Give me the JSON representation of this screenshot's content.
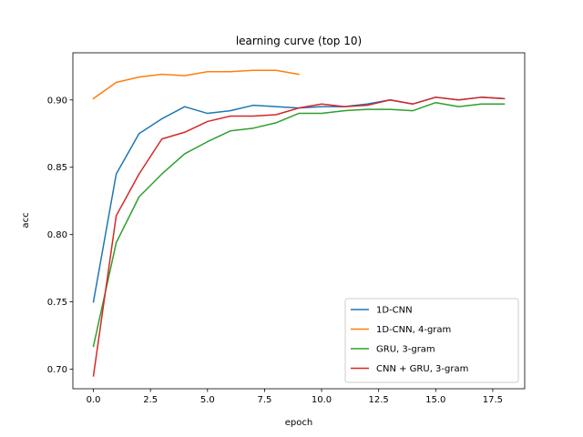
{
  "chart_data": {
    "type": "line",
    "title": "learning curve (top 10)",
    "xlabel": "epoch",
    "ylabel": "acc",
    "xlim": [
      -0.9,
      18.9
    ],
    "ylim": [
      0.6855,
      0.935
    ],
    "xticks": [
      0.0,
      2.5,
      5.0,
      7.5,
      10.0,
      12.5,
      15.0,
      17.5
    ],
    "xtick_labels": [
      "0.0",
      "2.5",
      "5.0",
      "7.5",
      "10.0",
      "12.5",
      "15.0",
      "17.5"
    ],
    "yticks": [
      0.7,
      0.75,
      0.8,
      0.85,
      0.9
    ],
    "ytick_labels": [
      "0.70",
      "0.75",
      "0.80",
      "0.85",
      "0.90"
    ],
    "grid": false,
    "legend_position": "lower-right",
    "series": [
      {
        "name": "1D-CNN",
        "color": "#1f77b4",
        "x": [
          0,
          1,
          2,
          3,
          4,
          5,
          6,
          7,
          8,
          9,
          10,
          11,
          12,
          13,
          14,
          15,
          16,
          17,
          18
        ],
        "y": [
          0.75,
          0.845,
          0.875,
          0.886,
          0.895,
          0.89,
          0.892,
          0.896,
          0.895,
          0.894,
          0.895,
          0.895,
          0.897,
          0.9,
          0.897,
          0.902,
          0.9,
          0.902,
          0.901
        ]
      },
      {
        "name": "1D-CNN, 4-gram",
        "color": "#ff7f0e",
        "x": [
          0,
          1,
          2,
          3,
          4,
          5,
          6,
          7,
          8,
          9
        ],
        "y": [
          0.901,
          0.913,
          0.917,
          0.919,
          0.918,
          0.921,
          0.921,
          0.922,
          0.922,
          0.919
        ]
      },
      {
        "name": "GRU, 3-gram",
        "color": "#2ca02c",
        "x": [
          0,
          1,
          2,
          3,
          4,
          5,
          6,
          7,
          8,
          9,
          10,
          11,
          12,
          13,
          14,
          15,
          16,
          17,
          18
        ],
        "y": [
          0.717,
          0.794,
          0.828,
          0.845,
          0.86,
          0.869,
          0.877,
          0.879,
          0.883,
          0.89,
          0.89,
          0.892,
          0.893,
          0.893,
          0.892,
          0.898,
          0.895,
          0.897,
          0.897
        ]
      },
      {
        "name": "CNN + GRU, 3-gram",
        "color": "#d62728",
        "x": [
          0,
          1,
          2,
          3,
          4,
          5,
          6,
          7,
          8,
          9,
          10,
          11,
          12,
          13,
          14,
          15,
          16,
          17,
          18
        ],
        "y": [
          0.695,
          0.814,
          0.845,
          0.871,
          0.876,
          0.884,
          0.888,
          0.888,
          0.889,
          0.894,
          0.897,
          0.895,
          0.896,
          0.9,
          0.897,
          0.902,
          0.9,
          0.902,
          0.901
        ]
      }
    ]
  }
}
